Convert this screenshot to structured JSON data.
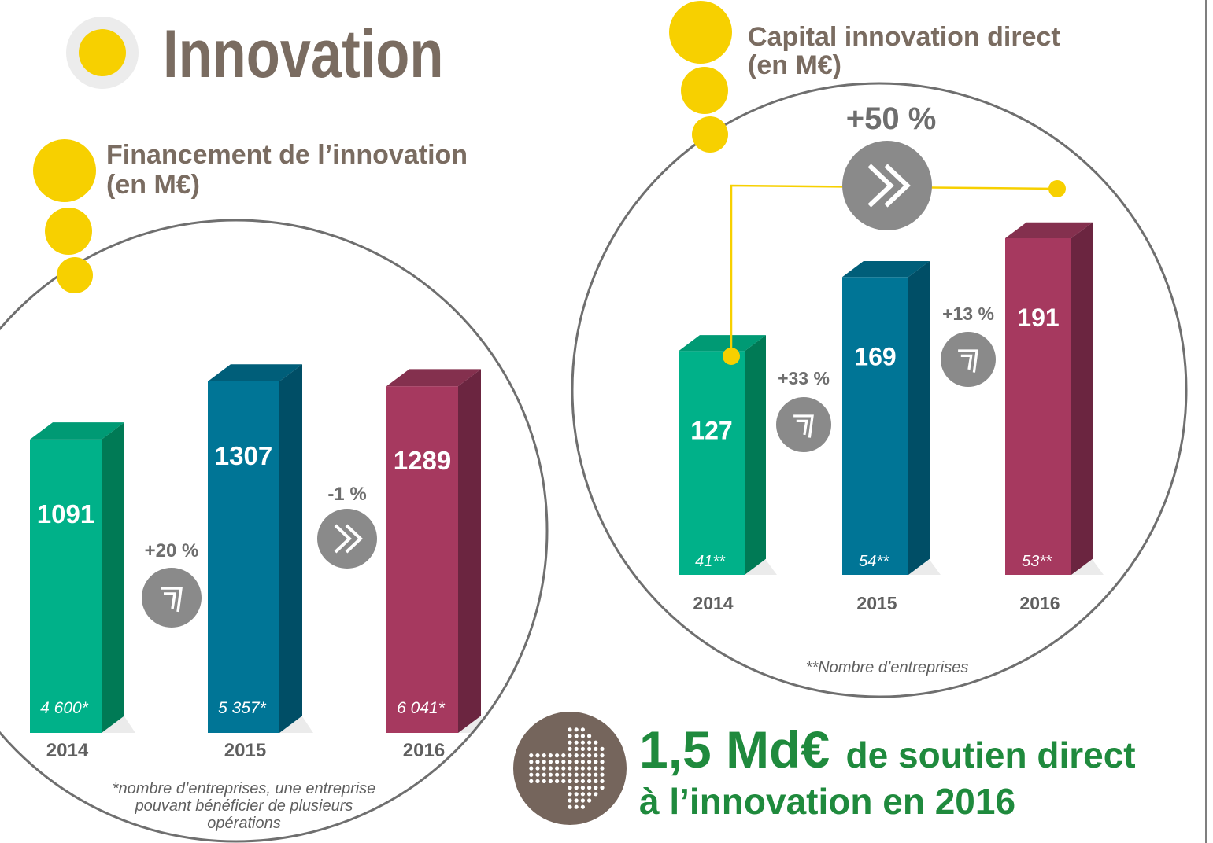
{
  "page": {
    "title": "Innovation"
  },
  "colors": {
    "yellow": "#f7d000",
    "title_brown": "#7a6c61",
    "green_front": "#00b189",
    "green_side": "#007a55",
    "green_top": "#009a74",
    "blue_front": "#007596",
    "blue_side": "#004e66",
    "blue_top": "#005e79",
    "pink_front": "#a6395f",
    "pink_side": "#6b2540",
    "pink_top": "#84304e",
    "gray_badge": "#8a8a8a",
    "highlight_green": "#1f8a3d"
  },
  "chart_data": [
    {
      "type": "bar",
      "title": "Financement de l’innovation",
      "subtitle": "(en M€)",
      "categories": [
        "2014",
        "2015",
        "2016"
      ],
      "values": [
        1091,
        1307,
        1289
      ],
      "value_labels": [
        "1091",
        "1307",
        "1289"
      ],
      "counts": [
        "4 600*",
        "5 357*",
        "6 041*"
      ],
      "changes": [
        "+20 %",
        "-1 %"
      ],
      "ylim": [
        0,
        1400
      ],
      "footnote_lines": [
        "*nombre d’entreprises, une entreprise",
        "pouvant bénéficier de plusieurs",
        "opérations"
      ]
    },
    {
      "type": "bar",
      "title": "Capital innovation direct",
      "subtitle": "(en M€)",
      "categories": [
        "2014",
        "2015",
        "2016"
      ],
      "values": [
        127,
        169,
        191
      ],
      "value_labels": [
        "127",
        "169",
        "191"
      ],
      "counts": [
        "41**",
        "54**",
        "53**"
      ],
      "changes": [
        "+33 %",
        "+13 %"
      ],
      "overall_change": "+50 %",
      "ylim": [
        0,
        210
      ],
      "footnote": "**Nombre d’entreprises"
    }
  ],
  "highlight": {
    "amount": "1,5 Md€",
    "line1_rest": "de soutien direct",
    "line2": "à l’innovation en 2016"
  }
}
